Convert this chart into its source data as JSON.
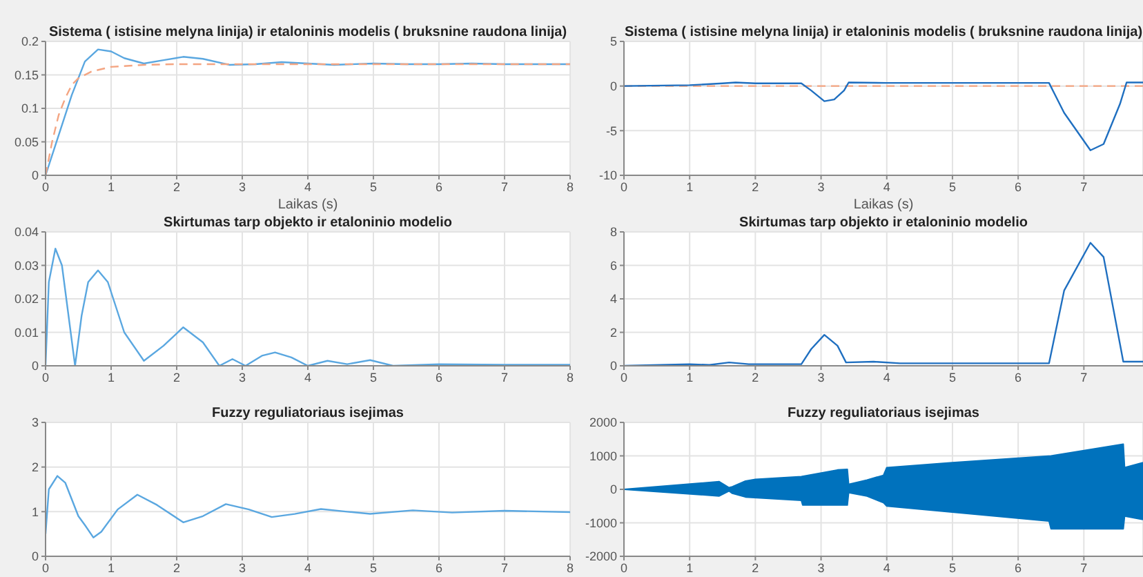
{
  "chart_data": [
    {
      "type": "line",
      "title": "Sistema ( istisine melyna linija) ir etaloninis modelis ( bruksnine raudona linija)",
      "xlabel": "Laikas (s)",
      "xlim": [
        0,
        8
      ],
      "xticks": [
        0,
        1,
        2,
        3,
        4,
        5,
        6,
        7,
        8
      ],
      "ylim": [
        0,
        0.2
      ],
      "yticks": [
        0,
        0.05,
        0.1,
        0.15,
        0.2
      ],
      "grid": true,
      "marker": "none",
      "series": [
        {
          "color": "#5aa7e0",
          "line_style": "solid",
          "x": [
            0,
            0.2,
            0.4,
            0.6,
            0.8,
            1.0,
            1.2,
            1.5,
            1.8,
            2.1,
            2.4,
            2.8,
            3.2,
            3.6,
            4.0,
            4.4,
            5.0,
            5.5,
            6.0,
            6.5,
            7,
            8
          ],
          "values": [
            0,
            0.06,
            0.12,
            0.17,
            0.188,
            0.185,
            0.175,
            0.167,
            0.172,
            0.177,
            0.174,
            0.165,
            0.166,
            0.169,
            0.167,
            0.165,
            0.167,
            0.166,
            0.166,
            0.167,
            0.166,
            0.166
          ]
        },
        {
          "color": "#f4a582",
          "line_style": "dashed",
          "x": [
            0,
            0.1,
            0.2,
            0.3,
            0.4,
            0.5,
            0.7,
            1,
            1.5,
            2,
            8
          ],
          "values": [
            0,
            0.05,
            0.09,
            0.115,
            0.135,
            0.145,
            0.155,
            0.162,
            0.165,
            0.166,
            0.166
          ]
        }
      ]
    },
    {
      "type": "line",
      "title": "Sistema ( istisine melyna linija) ir etaloninis modelis ( bruksnine raudona linija)",
      "xlabel": "Laikas (s)",
      "xlim": [
        0,
        7.9
      ],
      "xticks": [
        0,
        1,
        2,
        3,
        4,
        5,
        6,
        7
      ],
      "ylim": [
        -10,
        5
      ],
      "yticks": [
        -10,
        -5,
        0,
        5
      ],
      "grid": true,
      "marker": "none",
      "series": [
        {
          "color": "#f4a582",
          "line_style": "dashed",
          "x": [
            0,
            7.9
          ],
          "values": [
            0,
            0
          ]
        },
        {
          "color": "#1f6fc0",
          "line_style": "solid",
          "x": [
            0,
            1,
            1.5,
            1.7,
            2,
            2.7,
            2.85,
            3.05,
            3.2,
            3.35,
            3.42,
            4,
            6.47,
            6.7,
            7.1,
            7.3,
            7.55,
            7.65,
            7.9
          ],
          "values": [
            0,
            0.1,
            0.3,
            0.4,
            0.3,
            0.3,
            -0.5,
            -1.7,
            -1.5,
            -0.5,
            0.4,
            0.35,
            0.35,
            -3,
            -7.2,
            -6.5,
            -2,
            0.4,
            0.4
          ]
        }
      ]
    },
    {
      "type": "line",
      "title": "Skirtumas tarp objekto ir etaloninio modelio",
      "xlim": [
        0,
        8
      ],
      "xticks": [
        0,
        1,
        2,
        3,
        4,
        5,
        6,
        7,
        8
      ],
      "ylim": [
        0,
        0.04
      ],
      "yticks": [
        0,
        0.01,
        0.02,
        0.03,
        0.04
      ],
      "grid": true,
      "marker": "none",
      "series": [
        {
          "color": "#5aa7e0",
          "line_style": "solid",
          "x": [
            0,
            0.05,
            0.15,
            0.25,
            0.35,
            0.45,
            0.55,
            0.65,
            0.8,
            0.95,
            1.2,
            1.5,
            1.8,
            2.1,
            2.4,
            2.65,
            2.85,
            3.05,
            3.3,
            3.5,
            3.75,
            4,
            4.3,
            4.6,
            4.95,
            5.3,
            6,
            7,
            8
          ],
          "values": [
            0,
            0.025,
            0.035,
            0.03,
            0.015,
            0,
            0.015,
            0.025,
            0.0285,
            0.025,
            0.01,
            0.0015,
            0.006,
            0.0115,
            0.007,
            0,
            0.002,
            0,
            0.003,
            0.004,
            0.0025,
            0,
            0.0015,
            0.0005,
            0.0017,
            0,
            0.0005,
            0.0003,
            0.0003
          ]
        }
      ]
    },
    {
      "type": "line",
      "title": "Skirtumas tarp objekto ir etaloninio modelio",
      "xlim": [
        0,
        7.9
      ],
      "xticks": [
        0,
        1,
        2,
        3,
        4,
        5,
        6,
        7
      ],
      "ylim": [
        0,
        8
      ],
      "yticks": [
        0,
        2,
        4,
        6,
        8
      ],
      "grid": true,
      "marker": "none",
      "series": [
        {
          "color": "#1f6fc0",
          "line_style": "solid",
          "x": [
            0,
            1,
            1.3,
            1.6,
            1.9,
            2.7,
            2.85,
            3.05,
            3.25,
            3.38,
            3.8,
            4.2,
            6.47,
            6.7,
            7.1,
            7.3,
            7.6,
            7.9
          ],
          "values": [
            0,
            0.1,
            0.05,
            0.2,
            0.1,
            0.1,
            1.0,
            1.85,
            1.2,
            0.2,
            0.25,
            0.15,
            0.15,
            4.5,
            7.35,
            6.5,
            0.25,
            0.25
          ]
        }
      ]
    },
    {
      "type": "line",
      "title": "Fuzzy reguliatoriaus isejimas",
      "xlim": [
        0,
        8
      ],
      "xticks": [
        0,
        1,
        2,
        3,
        4,
        5,
        6,
        7,
        8
      ],
      "ylim": [
        0,
        3
      ],
      "yticks": [
        0,
        1,
        2,
        3
      ],
      "grid": true,
      "marker": "none",
      "series": [
        {
          "color": "#5aa7e0",
          "line_style": "solid",
          "x": [
            0,
            0.05,
            0.18,
            0.3,
            0.5,
            0.6,
            0.73,
            0.85,
            1.1,
            1.4,
            1.7,
            2.1,
            2.4,
            2.75,
            3.1,
            3.45,
            3.8,
            4.2,
            4.6,
            4.95,
            5.6,
            6.2,
            7,
            8
          ],
          "values": [
            0.5,
            1.5,
            1.8,
            1.65,
            0.9,
            0.7,
            0.42,
            0.55,
            1.05,
            1.38,
            1.15,
            0.76,
            0.9,
            1.17,
            1.05,
            0.88,
            0.95,
            1.06,
            1.0,
            0.95,
            1.03,
            0.98,
            1.02,
            0.99
          ]
        }
      ]
    },
    {
      "type": "area",
      "title": "Fuzzy reguliatoriaus isejimas",
      "xlim": [
        0,
        7.9
      ],
      "xticks": [
        0,
        1,
        2,
        3,
        4,
        5,
        6,
        7
      ],
      "ylim": [
        -2000,
        2000
      ],
      "yticks": [
        -2000,
        -1000,
        0,
        1000,
        2000
      ],
      "grid": true,
      "marker": "none",
      "series": [
        {
          "color": "#0072bd",
          "x": [
            0,
            1.45,
            1.6,
            1.65,
            1.85,
            2,
            2.7,
            3.25,
            3.4,
            3.42,
            3.7,
            3.95,
            4.0,
            5,
            6.5,
            7.6,
            7.62,
            7.9
          ],
          "values": [
            0,
            230,
            50,
            80,
            250,
            300,
            380,
            580,
            600,
            150,
            280,
            420,
            650,
            800,
            1000,
            1350,
            650,
            800
          ]
        },
        {
          "color": "#0072bd",
          "x": [
            0,
            1.45,
            1.6,
            1.65,
            1.85,
            2.7,
            2.72,
            3.4,
            3.42,
            3.7,
            3.95,
            4,
            6.47,
            6.5,
            7.6,
            7.62,
            7.9
          ],
          "values": [
            0,
            -200,
            -50,
            -120,
            -230,
            -330,
            -470,
            -470,
            -100,
            -200,
            -400,
            -500,
            -950,
            -1180,
            -1180,
            -800,
            -900
          ]
        }
      ]
    }
  ]
}
